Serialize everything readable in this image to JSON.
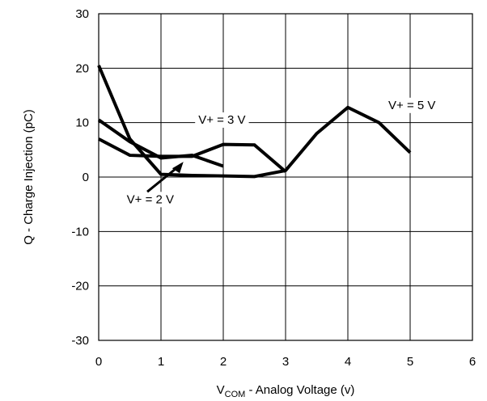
{
  "chart_data": {
    "type": "line",
    "xlabel_main": "V",
    "xlabel_sub": "COM",
    "xlabel_rest": " - Analog Voltage (v)",
    "ylabel": "Q - Charge Injection (pC)",
    "xlim": [
      0,
      6
    ],
    "ylim": [
      -30,
      30
    ],
    "x_ticks": [
      "0",
      "1",
      "2",
      "3",
      "4",
      "5",
      "6"
    ],
    "y_ticks": [
      "30",
      "20",
      "10",
      "0",
      "-10",
      "-20",
      "-30"
    ],
    "grid": true,
    "series": [
      {
        "name": "V+ = 2 V",
        "x": [
          0,
          0.5,
          1,
          1.5,
          2
        ],
        "y": [
          10.5,
          6.5,
          3.5,
          4,
          2
        ]
      },
      {
        "name": "V+ = 3 V",
        "x": [
          0,
          0.5,
          1,
          1.5,
          2,
          2.5,
          3
        ],
        "y": [
          7,
          4,
          3.8,
          3.8,
          6,
          5.9,
          1
        ]
      },
      {
        "name": "V+ = 5 V",
        "x": [
          0,
          0.5,
          1,
          1.5,
          2,
          2.5,
          3,
          3.5,
          4,
          4.5,
          5
        ],
        "y": [
          20.5,
          7,
          0.5,
          0.3,
          0.2,
          0.1,
          1.2,
          8,
          12.8,
          10,
          4.5
        ]
      }
    ],
    "annotations": [
      {
        "text": "V+ = 3 V",
        "x": 1.6,
        "y": 9.8
      },
      {
        "text": "V+ = 5 V",
        "x": 4.65,
        "y": 12.5
      },
      {
        "text": "V+ = 2 V",
        "x": 0.45,
        "y": -4.8
      }
    ]
  }
}
